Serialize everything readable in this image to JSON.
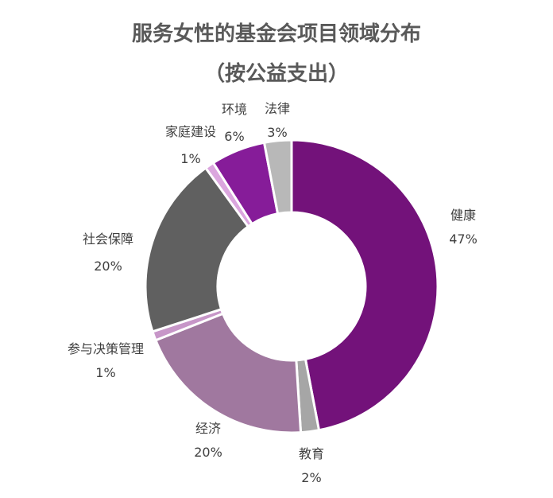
{
  "chart_data": {
    "type": "pie",
    "variant": "donut",
    "title": [
      "服务女性的基金会项目领域分布",
      "（按公益支出）"
    ],
    "series": [
      {
        "name": "健康",
        "value": 47,
        "label": "47%",
        "color": "#73127A"
      },
      {
        "name": "教育",
        "value": 2,
        "label": "2%",
        "color": "#A6A6A6"
      },
      {
        "name": "经济",
        "value": 20,
        "label": "20%",
        "color": "#A0789F"
      },
      {
        "name": "参与决策管理",
        "value": 1,
        "label": "1%",
        "color": "#C796C8"
      },
      {
        "name": "社会保障",
        "value": 20,
        "label": "20%",
        "color": "#606060"
      },
      {
        "name": "家庭建设",
        "value": 1,
        "label": "1%",
        "color": "#DBA6DE"
      },
      {
        "name": "环境",
        "value": 6,
        "label": "6%",
        "color": "#861C99"
      },
      {
        "name": "法律",
        "value": 3,
        "label": "3%",
        "color": "#B8B8B8"
      }
    ],
    "legend": "none"
  }
}
